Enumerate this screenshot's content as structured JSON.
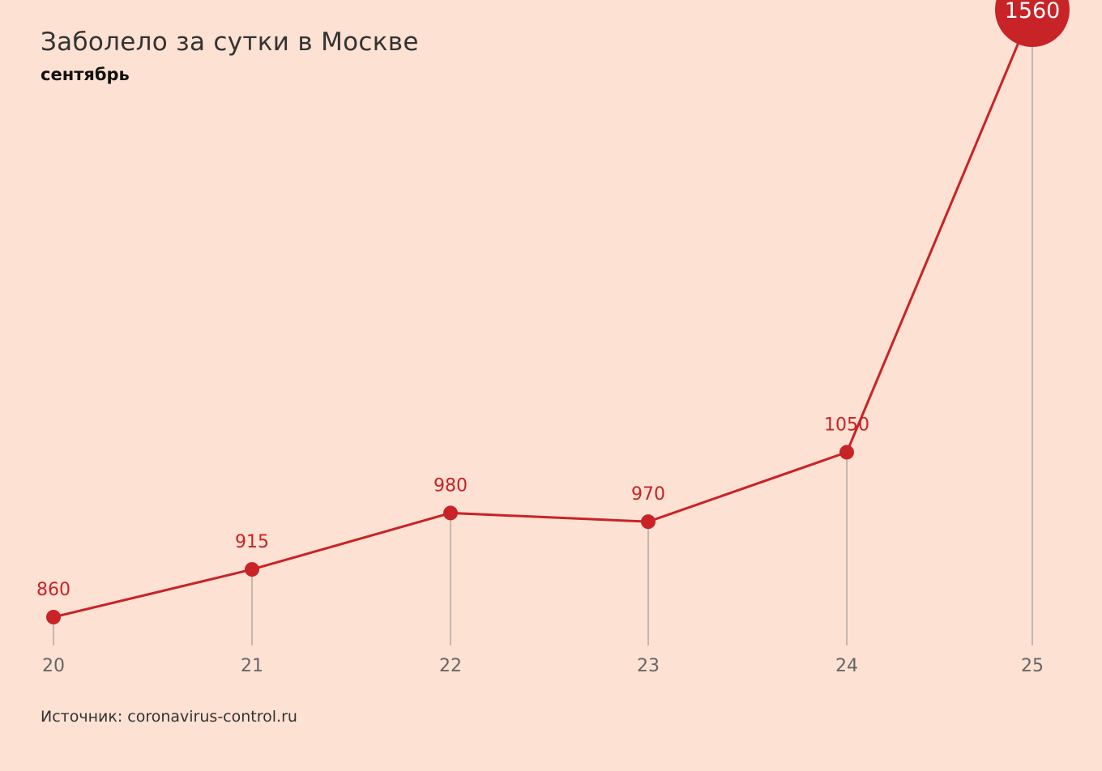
{
  "chart_data": {
    "type": "line",
    "title": "Заболело за сутки в Москве",
    "subtitle": "сентябрь",
    "x": [
      "20",
      "21",
      "22",
      "23",
      "24",
      "25"
    ],
    "series": [
      {
        "values": [
          860,
          915,
          980,
          970,
          1050,
          1560
        ]
      }
    ],
    "data_labels": [
      "860",
      "915",
      "980",
      "970",
      "1050",
      "1560"
    ],
    "highlight_index": 5,
    "line_color": "#c82326",
    "grid": false,
    "source": "Источник: coronavirus-control.ru"
  }
}
